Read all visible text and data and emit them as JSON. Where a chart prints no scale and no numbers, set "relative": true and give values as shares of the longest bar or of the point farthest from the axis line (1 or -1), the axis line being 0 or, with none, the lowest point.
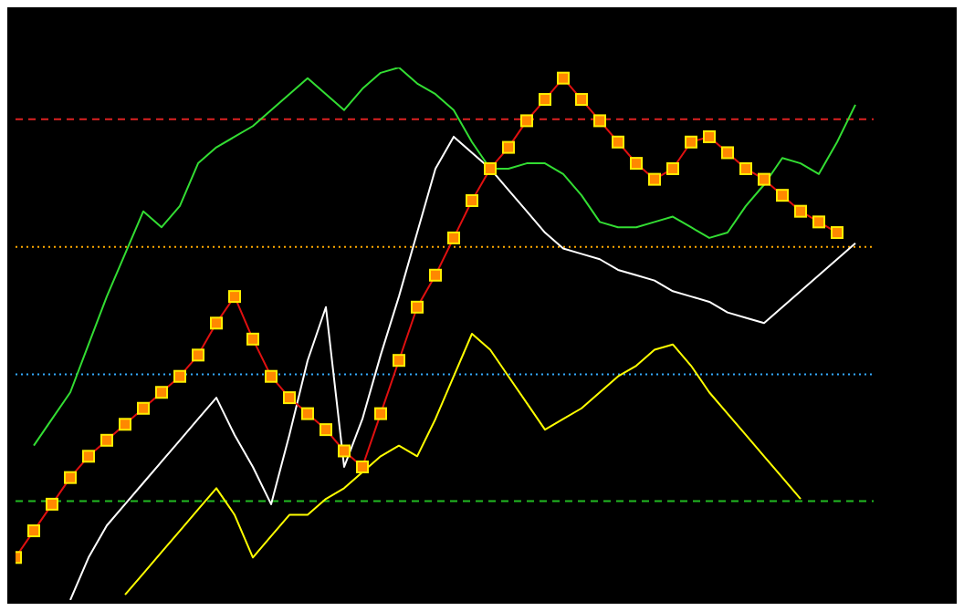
{
  "chart_data": {
    "type": "line",
    "relative": true,
    "grid": false,
    "legend": false,
    "categories": [
      null,
      null,
      null,
      null,
      null,
      null,
      null,
      null,
      null,
      null,
      null,
      null,
      null,
      null,
      null,
      null,
      null,
      null,
      null,
      null,
      null,
      null,
      null,
      null,
      null,
      null,
      null,
      null,
      null,
      null,
      null,
      null,
      null,
      null,
      null,
      null,
      null,
      null,
      null,
      null,
      null,
      null,
      null,
      null,
      null,
      null,
      null,
      null
    ],
    "series": [
      {
        "color": "#33dd33",
        "marker": "none",
        "values": [
          null,
          0.29,
          0.34,
          0.39,
          0.48,
          0.57,
          0.65,
          0.73,
          0.7,
          0.74,
          0.82,
          0.85,
          0.87,
          0.89,
          0.92,
          0.95,
          0.98,
          0.95,
          0.92,
          0.96,
          0.99,
          1,
          0.97,
          0.95,
          0.92,
          0.86,
          0.81,
          0.81,
          0.82,
          0.82,
          0.8,
          0.76,
          0.71,
          0.7,
          0.7,
          0.71,
          0.72,
          0.7,
          0.68,
          0.69,
          0.74,
          0.78,
          0.83,
          0.82,
          0.8,
          0.86,
          0.93,
          null
        ]
      },
      {
        "color": "#ffffff",
        "marker": "none",
        "values": [
          null,
          null,
          null,
          0,
          0.08,
          0.14,
          0.18,
          0.22,
          0.26,
          0.3,
          0.34,
          0.38,
          0.31,
          0.25,
          0.18,
          0.31,
          0.45,
          0.55,
          0.25,
          0.34,
          0.46,
          0.57,
          0.69,
          0.81,
          0.87,
          0.84,
          0.81,
          0.77,
          0.73,
          0.69,
          0.66,
          0.65,
          0.64,
          0.62,
          0.61,
          0.6,
          0.58,
          0.57,
          0.56,
          0.54,
          0.53,
          0.52,
          0.55,
          0.58,
          0.61,
          0.64,
          0.67,
          null
        ]
      },
      {
        "color": "#ffff00",
        "marker": "none",
        "values": [
          null,
          null,
          null,
          null,
          null,
          null,
          0.01,
          0.05,
          0.09,
          0.13,
          0.17,
          0.21,
          0.16,
          0.08,
          0.12,
          0.16,
          0.16,
          0.19,
          0.21,
          0.24,
          0.27,
          0.29,
          0.27,
          0.34,
          0.42,
          0.5,
          0.47,
          0.42,
          0.37,
          0.32,
          0.34,
          0.36,
          0.39,
          0.42,
          0.44,
          0.47,
          0.48,
          0.44,
          0.39,
          0.35,
          0.31,
          0.27,
          0.23,
          0.19,
          null,
          null,
          null,
          null
        ]
      },
      {
        "color": "#e01010",
        "marker": "square",
        "values": [
          0.08,
          0.13,
          0.18,
          0.23,
          0.27,
          0.3,
          0.33,
          0.36,
          0.39,
          0.42,
          0.46,
          0.52,
          0.57,
          0.49,
          0.42,
          0.38,
          0.35,
          0.32,
          0.28,
          0.25,
          0.35,
          0.45,
          0.55,
          0.61,
          0.68,
          0.75,
          0.81,
          0.85,
          0.9,
          0.94,
          0.98,
          0.94,
          0.9,
          0.86,
          0.82,
          0.79,
          0.81,
          0.86,
          0.87,
          0.84,
          0.81,
          0.79,
          0.76,
          0.73,
          0.71,
          0.69,
          null,
          null
        ]
      }
    ],
    "ref_lines": [
      {
        "axis": "y",
        "value": 0.903,
        "color": "#dd2222",
        "line_style": "dashed"
      },
      {
        "axis": "y",
        "value": 0.663,
        "color": "#ffaa00",
        "line_style": "dotted"
      },
      {
        "axis": "y",
        "value": 0.424,
        "color": "#33aaff",
        "line_style": "dotted"
      },
      {
        "axis": "y",
        "value": 0.186,
        "color": "#22bb22",
        "line_style": "dashed"
      }
    ]
  }
}
